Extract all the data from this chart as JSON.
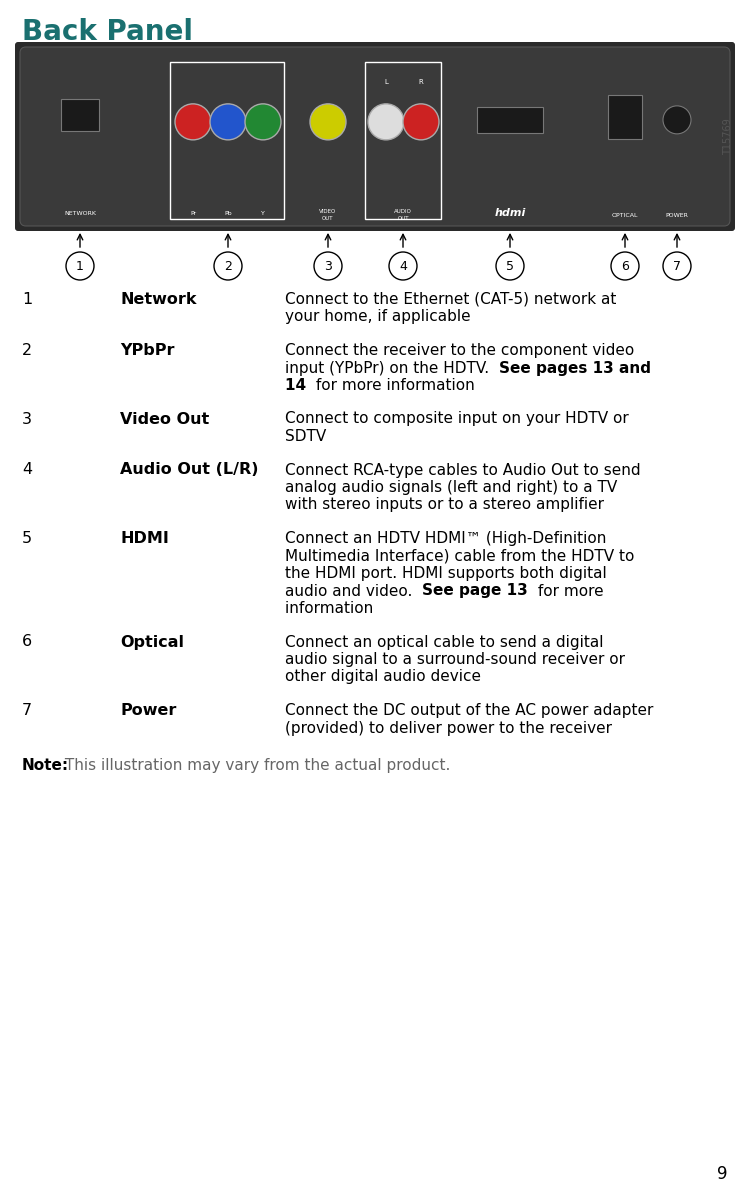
{
  "title": "Back Panel",
  "title_color": "#1a7070",
  "title_fontsize": 20,
  "title_fontweight": "bold",
  "background_color": "#ffffff",
  "page_number": "9",
  "entries": [
    {
      "number": "1",
      "label": "Network",
      "description_parts": [
        {
          "text": "Connect to the Ethernet (CAT-5) network at your home, if applicable",
          "bold": false
        }
      ]
    },
    {
      "number": "2",
      "label": "YPbPr",
      "description_parts": [
        {
          "text": "Connect the receiver to the component video input (YPbPr) on the HDTV. ",
          "bold": false
        },
        {
          "text": "See pages 13 and 14",
          "bold": true
        },
        {
          "text": " for more information",
          "bold": false
        }
      ]
    },
    {
      "number": "3",
      "label": "Video Out",
      "description_parts": [
        {
          "text": "Connect to composite input on your HDTV or SDTV",
          "bold": false
        }
      ]
    },
    {
      "number": "4",
      "label": "Audio Out (L/R)",
      "description_parts": [
        {
          "text": "Connect RCA-type cables to Audio Out to send analog audio signals (left and right) to a TV with stereo inputs or to a stereo amplifier",
          "bold": false
        }
      ]
    },
    {
      "number": "5",
      "label": "HDMI",
      "description_parts": [
        {
          "text": "Connect an HDTV HDMI™ (High-Definition Multimedia Interface) cable from the HDTV to the HDMI port. HDMI supports both digital audio and video. ",
          "bold": false
        },
        {
          "text": "See page 13",
          "bold": true
        },
        {
          "text": " for more information",
          "bold": false
        }
      ]
    },
    {
      "number": "6",
      "label": "Optical",
      "description_parts": [
        {
          "text": "Connect an optical cable to send a digital audio signal to a surround-sound receiver or other digital audio device",
          "bold": false
        }
      ]
    },
    {
      "number": "7",
      "label": "Power",
      "description_parts": [
        {
          "text": "Connect the DC output of the AC power adapter (provided) to deliver power to the receiver",
          "bold": false
        }
      ]
    }
  ],
  "note_label": "Note:",
  "note_text": "This illustration may vary from the actual product.",
  "text_color": "#000000",
  "note_color": "#666666",
  "label_fontsize": 11.5,
  "desc_fontsize": 11.0,
  "note_fontsize": 11.0
}
